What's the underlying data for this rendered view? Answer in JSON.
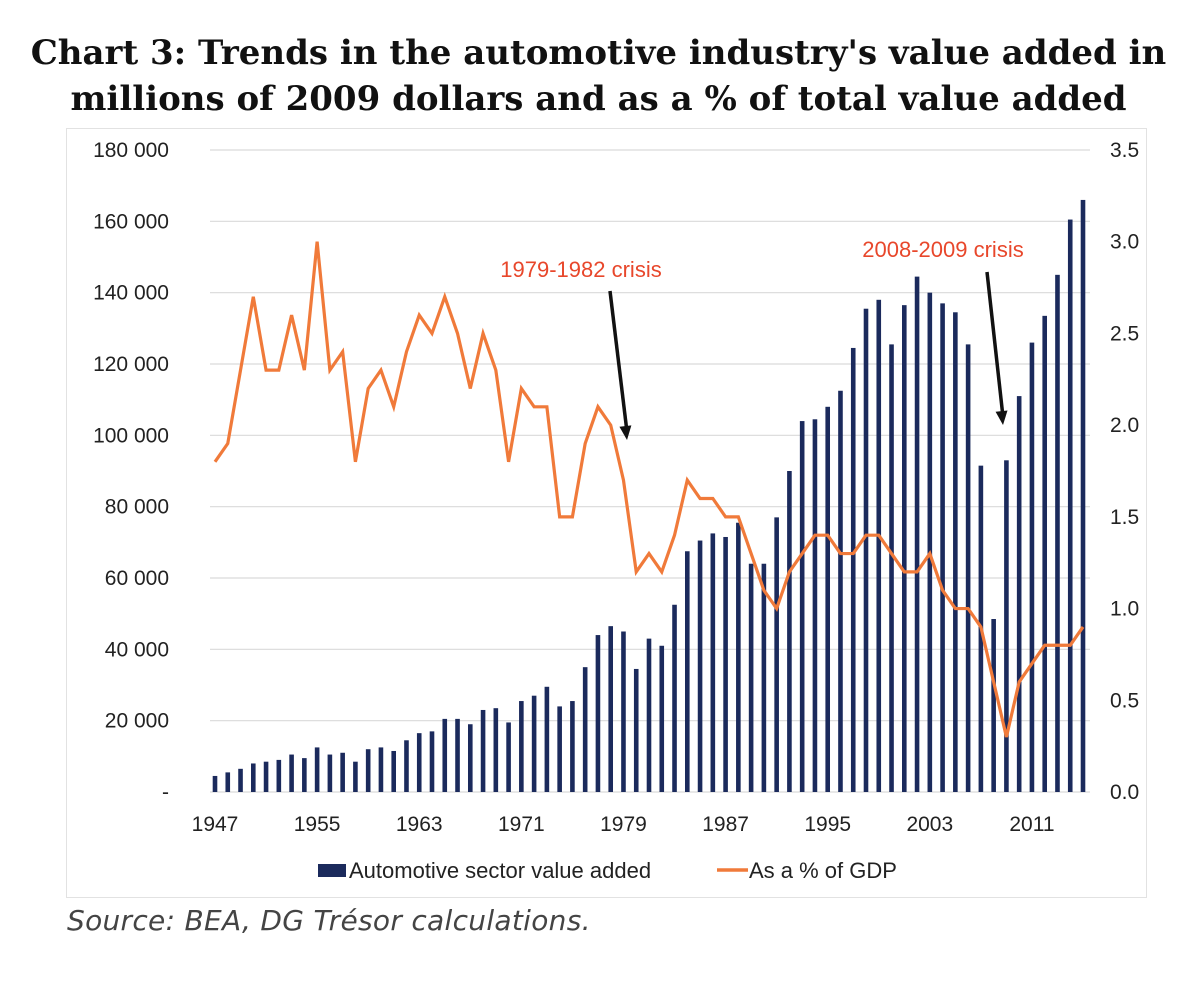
{
  "title_lines": [
    "Chart 3: Trends in the automotive industry's value added in",
    "millions of 2009 dollars and as a % of total value added"
  ],
  "source": "Source: BEA, DG Trésor calculations.",
  "colors": {
    "bars": "#1b2a5c",
    "line": "#f07a3a",
    "annotation": "#e8472b",
    "arrow": "#111111",
    "grid": "#d9d9d9"
  },
  "chart_data": {
    "type": "bar",
    "x": [
      1947,
      1948,
      1949,
      1950,
      1951,
      1952,
      1953,
      1954,
      1955,
      1956,
      1957,
      1958,
      1959,
      1960,
      1961,
      1962,
      1963,
      1964,
      1965,
      1966,
      1967,
      1968,
      1969,
      1970,
      1971,
      1972,
      1973,
      1974,
      1975,
      1976,
      1977,
      1978,
      1979,
      1980,
      1981,
      1982,
      1983,
      1984,
      1985,
      1986,
      1987,
      1988,
      1989,
      1990,
      1991,
      1992,
      1993,
      1994,
      1995,
      1996,
      1997,
      1998,
      1999,
      2000,
      2001,
      2002,
      2003,
      2004,
      2005,
      2006,
      2007,
      2008,
      2009,
      2010,
      2011,
      2012,
      2013,
      2014,
      2015
    ],
    "x_tick_labels": [
      "1947",
      "1955",
      "1963",
      "1971",
      "1979",
      "1987",
      "1995",
      "2003",
      "2011"
    ],
    "y_left_tick_labels": [
      "-",
      "20 000",
      "40 000",
      "60 000",
      "80 000",
      "100 000",
      "120 000",
      "140 000",
      "160 000",
      "180 000"
    ],
    "y_right_tick_labels": [
      "0.0",
      "0.5",
      "1.0",
      "1.5",
      "2.0",
      "2.5",
      "3.0",
      "3.5"
    ],
    "ylim_left": [
      0,
      180000
    ],
    "ylim_right": [
      0,
      3.5
    ],
    "grid": true,
    "legend_position": "bottom",
    "series": [
      {
        "name": "Automotive sector value added",
        "type": "bar",
        "axis": "left",
        "values": [
          4500,
          5500,
          6500,
          8000,
          8500,
          9000,
          10500,
          9500,
          12500,
          10500,
          11000,
          8500,
          12000,
          12500,
          11500,
          14500,
          16500,
          17000,
          20500,
          20500,
          19000,
          23000,
          23500,
          19500,
          25500,
          27000,
          29500,
          24000,
          25500,
          35000,
          44000,
          46500,
          45000,
          34500,
          43000,
          41000,
          52500,
          67500,
          70500,
          72500,
          71500,
          75500,
          64000,
          64000,
          77000,
          90000,
          104000,
          104500,
          108000,
          112500,
          124500,
          135500,
          138000,
          125500,
          136500,
          144500,
          140000,
          137000,
          134500,
          125500,
          91500,
          48500,
          93000,
          111000,
          126000,
          133500,
          145000,
          160500,
          166000
        ]
      },
      {
        "name": "As a % of GDP",
        "type": "line",
        "axis": "right",
        "values": [
          1.8,
          1.9,
          2.3,
          2.7,
          2.3,
          2.3,
          2.6,
          2.3,
          3.0,
          2.3,
          2.4,
          1.8,
          2.2,
          2.3,
          2.1,
          2.4,
          2.6,
          2.5,
          2.7,
          2.5,
          2.2,
          2.5,
          2.3,
          1.8,
          2.2,
          2.1,
          2.1,
          1.5,
          1.5,
          1.9,
          2.1,
          2.0,
          1.7,
          1.2,
          1.3,
          1.2,
          1.4,
          1.7,
          1.6,
          1.6,
          1.5,
          1.5,
          1.3,
          1.1,
          1.0,
          1.2,
          1.3,
          1.4,
          1.4,
          1.3,
          1.3,
          1.4,
          1.4,
          1.3,
          1.2,
          1.2,
          1.3,
          1.1,
          1.0,
          1.0,
          0.9,
          0.6,
          0.3,
          0.6,
          0.7,
          0.8,
          0.8,
          0.8,
          0.9
        ]
      }
    ],
    "annotations": [
      {
        "text": "1979-1982 crisis",
        "x": 1979
      },
      {
        "text": "2008-2009 crisis",
        "x": 2009
      }
    ]
  }
}
